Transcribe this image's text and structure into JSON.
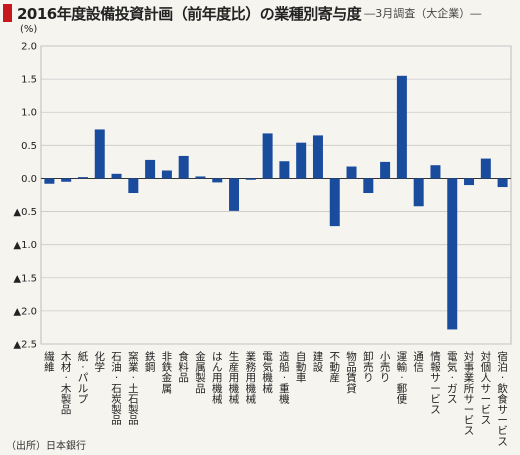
{
  "title": "2016年度設備投資計画（前年度比）の業種別寄与度",
  "subtitle": "―3月調査（大企業）―",
  "source": "（出所）日本銀行",
  "colors": {
    "bar": "#1a4c9e",
    "grid": "#c9c9c9",
    "accent": "#c8161d"
  },
  "chart_data": {
    "type": "bar",
    "unit_label": "(%)",
    "ylim": [
      -2.5,
      2.0
    ],
    "yticks": [
      2.0,
      1.5,
      1.0,
      0.5,
      0.0,
      -0.5,
      -1.0,
      -1.5,
      -2.0,
      -2.5
    ],
    "ytick_labels": [
      "2.0",
      "1.5",
      "1.0",
      "0.5",
      "0.0",
      "▲0.5",
      "▲1.0",
      "▲1.5",
      "▲2.0",
      "▲2.5"
    ],
    "grid": true,
    "categories": [
      "繊維",
      "木材・木製品",
      "紙・パルプ",
      "化学",
      "石油・石炭製品",
      "窯業・土石製品",
      "鉄鋼",
      "非鉄金属",
      "食料品",
      "金属製品",
      "はん用機械",
      "生産用機械",
      "業務用機械",
      "電気機械",
      "造船・重機",
      "自動車",
      "建設",
      "不動産",
      "物品賃貸",
      "卸売り",
      "小売り",
      "運輸・郵便",
      "通信",
      "情報サービス",
      "電気・ガス",
      "対事業所サービス",
      "対個人サービス",
      "宿泊・飲食サービス"
    ],
    "values": [
      -0.08,
      -0.05,
      0.02,
      0.74,
      0.07,
      -0.22,
      0.28,
      0.12,
      0.34,
      0.03,
      -0.06,
      -0.49,
      -0.02,
      0.68,
      0.26,
      0.54,
      0.65,
      -0.72,
      0.18,
      -0.22,
      0.25,
      1.55,
      -0.42,
      0.2,
      -2.28,
      -0.1,
      0.3,
      -0.13
    ]
  }
}
